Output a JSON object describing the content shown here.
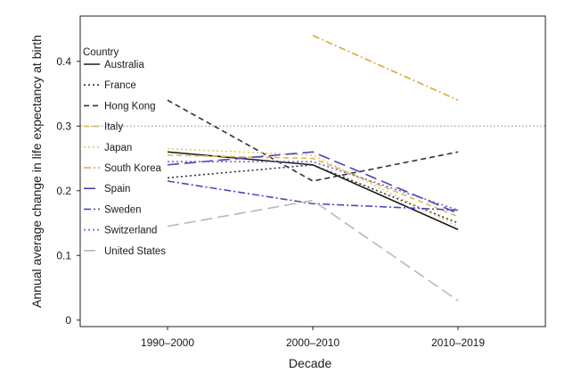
{
  "chart_data": {
    "type": "line",
    "title": "",
    "xlabel": "Decade",
    "ylabel": "Annual average change in life expectancy at birth",
    "categories": [
      "1990–2000",
      "2000–2010",
      "2010–2019"
    ],
    "yticks": [
      "0",
      "0.1",
      "0.2",
      "0.3",
      "0.4"
    ],
    "ylim": [
      -0.01,
      0.47
    ],
    "reference_line": 0.3,
    "legend": {
      "title": "Country",
      "position": "top-left"
    },
    "series": [
      {
        "name": "Australia",
        "values": [
          0.26,
          0.24,
          0.14
        ],
        "color": "#1a1a1a",
        "dash": "solid"
      },
      {
        "name": "France",
        "values": [
          0.22,
          0.24,
          0.15
        ],
        "color": "#333333",
        "dash": "dot"
      },
      {
        "name": "Hong Kong",
        "values": [
          0.34,
          0.215,
          0.26
        ],
        "color": "#333333",
        "dash": "dash"
      },
      {
        "name": "Italy",
        "values": [
          0.255,
          0.25,
          0.16
        ],
        "color": "#e0b84a",
        "dash": "dash"
      },
      {
        "name": "Japan",
        "values": [
          0.265,
          0.255,
          0.145
        ],
        "color": "#e8c876",
        "dash": "dot"
      },
      {
        "name": "South Korea",
        "values": [
          null,
          0.44,
          0.34
        ],
        "color": "#d8ac3c",
        "dash": "dashdot"
      },
      {
        "name": "Spain",
        "values": [
          0.24,
          0.26,
          0.165
        ],
        "color": "#4b44b0",
        "dash": "longdash"
      },
      {
        "name": "Sweden",
        "values": [
          0.215,
          0.18,
          0.17
        ],
        "color": "#4f48b8",
        "dash": "dashdot"
      },
      {
        "name": "Switzerland",
        "values": [
          0.245,
          0.245,
          0.17
        ],
        "color": "#6a63c8",
        "dash": "dot"
      },
      {
        "name": "United States",
        "values": [
          0.145,
          0.185,
          0.03
        ],
        "color": "#b8b8b8",
        "dash": "longdash"
      }
    ]
  }
}
